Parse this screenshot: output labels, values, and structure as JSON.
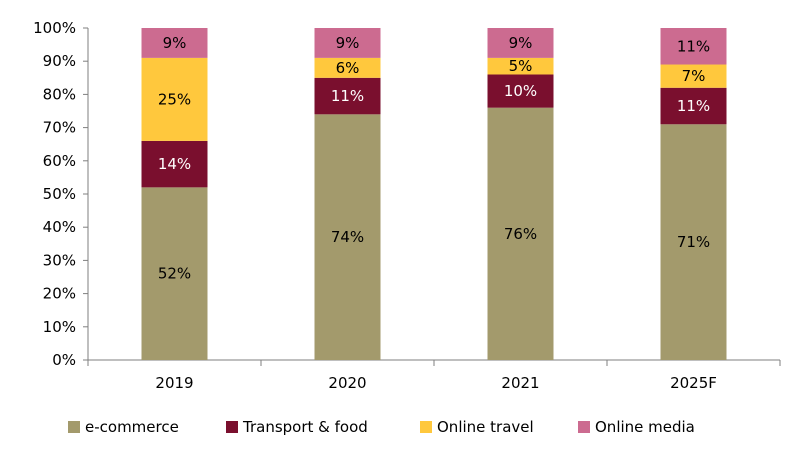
{
  "chart_data": {
    "type": "bar",
    "stacked": true,
    "categories": [
      "2019",
      "2020",
      "2021",
      "2025F"
    ],
    "ylim": [
      0,
      100
    ],
    "y_ticks": [
      "0%",
      "10%",
      "20%",
      "30%",
      "40%",
      "50%",
      "60%",
      "70%",
      "80%",
      "90%",
      "100%"
    ],
    "grid": false,
    "legend_position": "bottom",
    "series": [
      {
        "name": "e-commerce",
        "color": "#A39A6C",
        "label_color": "#000000",
        "values": [
          52,
          74,
          76,
          71
        ],
        "labels": [
          "52%",
          "74%",
          "76%",
          "71%"
        ]
      },
      {
        "name": "Transport & food",
        "color": "#7A0F2E",
        "label_color": "#ffffff",
        "values": [
          14,
          11,
          10,
          11
        ],
        "labels": [
          "14%",
          "11%",
          "10%",
          "11%"
        ]
      },
      {
        "name": "Online travel",
        "color": "#FFC83D",
        "label_color": "#000000",
        "values": [
          25,
          6,
          5,
          7
        ],
        "labels": [
          "25%",
          "6%",
          "5%",
          "7%"
        ]
      },
      {
        "name": "Online media",
        "color": "#CC6B90",
        "label_color": "#000000",
        "values": [
          9,
          9,
          9,
          11
        ],
        "labels": [
          "9%",
          "9%",
          "9%",
          "11%"
        ]
      }
    ]
  }
}
